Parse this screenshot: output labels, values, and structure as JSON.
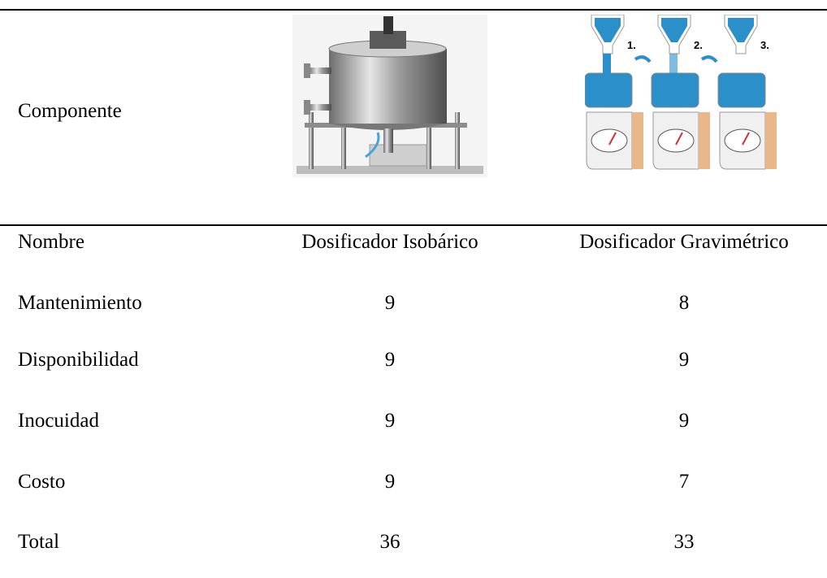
{
  "table": {
    "header": {
      "label": "Componente",
      "steps": [
        "1.",
        "2.",
        "3."
      ]
    },
    "columns": [
      "Nombre",
      "Dosificador Isobárico",
      "Dosificador Gravimétrico"
    ],
    "rows": [
      [
        "Mantenimiento",
        9,
        8
      ],
      [
        "Disponibilidad",
        9,
        9
      ],
      [
        "Inocuidad",
        9,
        9
      ],
      [
        "Costo",
        9,
        7
      ],
      [
        "Total",
        36,
        33
      ]
    ]
  }
}
